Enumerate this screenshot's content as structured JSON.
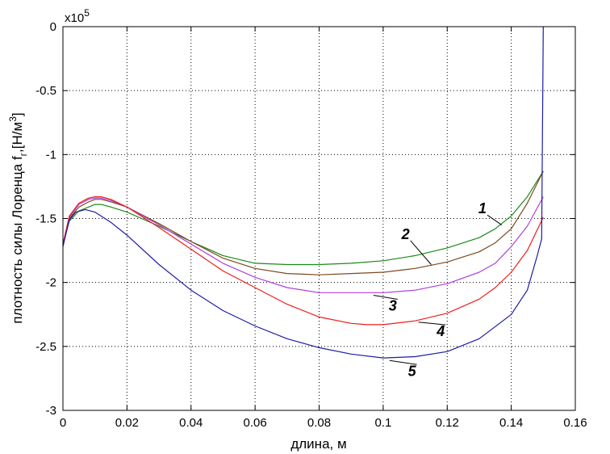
{
  "chart_data": {
    "type": "line",
    "xlabel": "длина, м",
    "ylabel": "плотность силы Лоренца  f",
    "ylabel_sub": "г",
    "ylabel_unit": ",[Н/м",
    "ylabel_unit_sup": "3",
    "ylabel_end": "]",
    "y_multiplier": "x10",
    "y_multiplier_exp": "5",
    "xlim": [
      0,
      0.16
    ],
    "ylim": [
      -3,
      0
    ],
    "x_ticks": [
      0,
      0.02,
      0.04,
      0.06,
      0.08,
      0.1,
      0.12,
      0.14,
      0.16
    ],
    "x_tick_labels": [
      "0",
      "0.02",
      "0.04",
      "0.06",
      "0.08",
      "0.1",
      "0.12",
      "0.14",
      "0.16"
    ],
    "y_ticks": [
      0,
      -0.5,
      -1,
      -1.5,
      -2,
      -2.5,
      -3
    ],
    "y_tick_labels": [
      "0",
      "-0.5",
      "-1",
      "-1.5",
      "-2",
      "-2.5",
      "-3"
    ],
    "grid": true,
    "series": [
      {
        "name": "1",
        "color": "#1a8a1a",
        "x": [
          0,
          0.002,
          0.005,
          0.008,
          0.01,
          0.012,
          0.015,
          0.02,
          0.03,
          0.04,
          0.05,
          0.06,
          0.07,
          0.08,
          0.09,
          0.1,
          0.11,
          0.12,
          0.13,
          0.135,
          0.14,
          0.145,
          0.15
        ],
        "y": [
          -1.7,
          -1.52,
          -1.44,
          -1.41,
          -1.39,
          -1.39,
          -1.41,
          -1.45,
          -1.56,
          -1.68,
          -1.79,
          -1.85,
          -1.86,
          -1.86,
          -1.85,
          -1.83,
          -1.79,
          -1.73,
          -1.65,
          -1.58,
          -1.48,
          -1.33,
          -1.13
        ],
        "label": {
          "text": "1",
          "x": 0.131,
          "y": -1.46,
          "ax": 0.137,
          "ay": -1.55
        }
      },
      {
        "name": "2",
        "color": "#7a4a1c",
        "x": [
          0,
          0.002,
          0.005,
          0.008,
          0.01,
          0.012,
          0.015,
          0.02,
          0.03,
          0.04,
          0.05,
          0.06,
          0.07,
          0.08,
          0.09,
          0.1,
          0.11,
          0.12,
          0.13,
          0.135,
          0.14,
          0.145,
          0.15
        ],
        "y": [
          -1.7,
          -1.5,
          -1.41,
          -1.37,
          -1.35,
          -1.35,
          -1.37,
          -1.41,
          -1.54,
          -1.68,
          -1.81,
          -1.89,
          -1.93,
          -1.94,
          -1.93,
          -1.92,
          -1.89,
          -1.84,
          -1.76,
          -1.69,
          -1.58,
          -1.38,
          -1.13
        ],
        "label": {
          "text": "2",
          "x": 0.107,
          "y": -1.66,
          "ax": 0.115,
          "ay": -1.86
        }
      },
      {
        "name": "3",
        "color": "#b040e0",
        "x": [
          0,
          0.002,
          0.005,
          0.008,
          0.01,
          0.012,
          0.015,
          0.02,
          0.03,
          0.04,
          0.05,
          0.06,
          0.07,
          0.08,
          0.09,
          0.1,
          0.11,
          0.12,
          0.13,
          0.135,
          0.14,
          0.145,
          0.15
        ],
        "y": [
          -1.7,
          -1.49,
          -1.39,
          -1.35,
          -1.34,
          -1.34,
          -1.36,
          -1.41,
          -1.55,
          -1.7,
          -1.85,
          -1.96,
          -2.04,
          -2.08,
          -2.08,
          -2.08,
          -2.06,
          -2.01,
          -1.92,
          -1.85,
          -1.72,
          -1.56,
          -1.33
        ],
        "label": {
          "text": "3",
          "x": 0.103,
          "y": -2.22,
          "ax": 0.097,
          "ay": -2.1
        }
      },
      {
        "name": "4",
        "color": "#ee1c1c",
        "x": [
          0,
          0.002,
          0.005,
          0.008,
          0.01,
          0.012,
          0.015,
          0.02,
          0.03,
          0.04,
          0.05,
          0.06,
          0.07,
          0.08,
          0.09,
          0.095,
          0.1,
          0.11,
          0.12,
          0.13,
          0.135,
          0.14,
          0.145,
          0.15
        ],
        "y": [
          -1.7,
          -1.48,
          -1.38,
          -1.34,
          -1.33,
          -1.33,
          -1.35,
          -1.41,
          -1.57,
          -1.74,
          -1.91,
          -2.04,
          -2.17,
          -2.27,
          -2.32,
          -2.33,
          -2.33,
          -2.3,
          -2.24,
          -2.13,
          -2.04,
          -1.92,
          -1.75,
          -1.49
        ],
        "label": {
          "text": "4",
          "x": 0.118,
          "y": -2.42,
          "ax": 0.111,
          "ay": -2.31
        }
      },
      {
        "name": "5",
        "color": "#1c1ca8",
        "x": [
          0,
          0.002,
          0.004,
          0.007,
          0.01,
          0.015,
          0.02,
          0.03,
          0.04,
          0.05,
          0.06,
          0.07,
          0.08,
          0.09,
          0.1,
          0.11,
          0.12,
          0.13,
          0.14,
          0.145,
          0.148,
          0.1495,
          0.1497,
          0.15
        ],
        "y": [
          -1.72,
          -1.51,
          -1.45,
          -1.43,
          -1.45,
          -1.53,
          -1.63,
          -1.86,
          -2.06,
          -2.22,
          -2.34,
          -2.44,
          -2.51,
          -2.56,
          -2.59,
          -2.58,
          -2.54,
          -2.44,
          -2.25,
          -2.06,
          -1.8,
          -1.66,
          -1.0,
          0.02
        ],
        "label": {
          "text": "5",
          "x": 0.109,
          "y": -2.73,
          "ax": 0.102,
          "ay": -2.61
        }
      }
    ]
  }
}
